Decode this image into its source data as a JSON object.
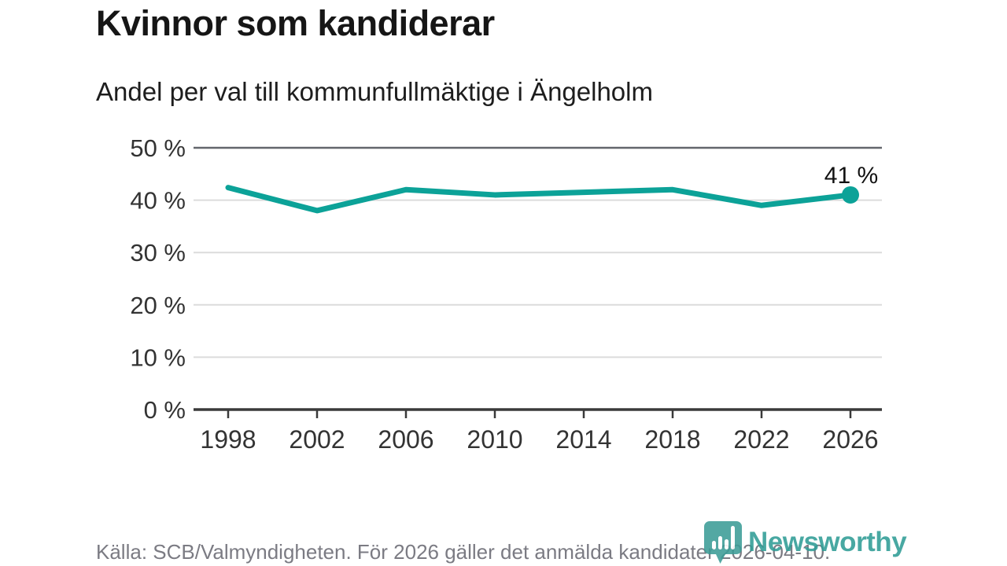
{
  "header": {
    "title": "Kvinnor som kandiderar",
    "subtitle": "Andel per val till kommunfullmäktige i Ängelholm"
  },
  "chart_data": {
    "type": "line",
    "categories": [
      "1998",
      "2002",
      "2006",
      "2010",
      "2014",
      "2018",
      "2022",
      "2026"
    ],
    "values": [
      42.4,
      38,
      42,
      41,
      41.5,
      42,
      39,
      41
    ],
    "title": "Kvinnor som kandiderar",
    "subtitle": "Andel per val till kommunfullmäktige i Ängelholm",
    "xlabel": "",
    "ylabel": "",
    "ylim": [
      0,
      50
    ],
    "ytick_step": 10,
    "ytick_suffix": " %",
    "last_point_label": "41 %",
    "grid": "horizontal",
    "legend": "none",
    "line_color": "#0ca298",
    "grid_color": "#dcdcdc",
    "top_grid_color": "#63666c",
    "axis_color": "#3a3a3a",
    "tick_label_color": "#333333",
    "annotation_color": "#111111"
  },
  "footer": {
    "source": "Källa: SCB/Valmyndigheten. För 2026 gäller det anmälda kandidater 2026-04-10."
  },
  "branding": {
    "name": "Newsworthy",
    "color": "#2f9d96",
    "icon": "bar-chart-bubble-icon"
  }
}
